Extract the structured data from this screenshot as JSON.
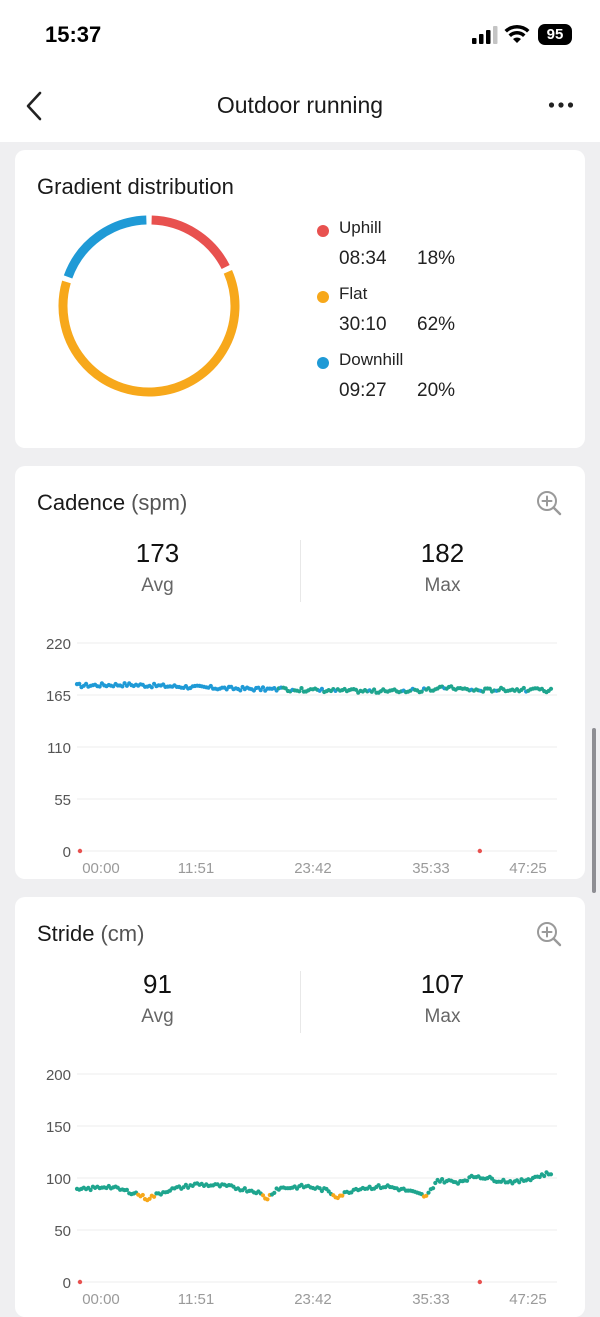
{
  "status": {
    "time": "15:37",
    "battery": "95"
  },
  "nav": {
    "title": "Outdoor running",
    "back_icon": "chevron-left-icon",
    "more_icon": "more-horizontal-icon"
  },
  "gradient": {
    "title": "Gradient distribution",
    "items": [
      {
        "name": "Uphill",
        "time": "08:34",
        "percent": "18%",
        "value": 18,
        "color": "#e8514f"
      },
      {
        "name": "Flat",
        "time": "30:10",
        "percent": "62%",
        "value": 62,
        "color": "#f7a81b"
      },
      {
        "name": "Downhill",
        "time": "09:27",
        "percent": "20%",
        "value": 20,
        "color": "#1f9ad6"
      }
    ]
  },
  "cadence": {
    "title": "Cadence",
    "unit": "(spm)",
    "avg_value": "173",
    "avg_label": "Avg",
    "max_value": "182",
    "max_label": "Max",
    "zoom_icon": "zoom-in-icon"
  },
  "stride": {
    "title": "Stride",
    "unit": "(cm)",
    "avg_value": "91",
    "avg_label": "Avg",
    "max_value": "107",
    "max_label": "Max",
    "zoom_icon": "zoom-in-icon"
  },
  "chart_data": [
    {
      "type": "scatter",
      "name": "cadence",
      "ylim": [
        0,
        220
      ],
      "yticks": [
        "220",
        "165",
        "110",
        "55",
        "0"
      ],
      "ytick_values": [
        220,
        165,
        110,
        55,
        0
      ],
      "xticks": [
        "00:00",
        "11:51",
        "23:42",
        "35:33",
        "47:25"
      ],
      "xlim_minutes": [
        0,
        47.42
      ],
      "colors": {
        "main": "#1ea58e",
        "alt": "#1f9ad6",
        "low": "#e8514f"
      },
      "trend": [
        [
          0,
          175
        ],
        [
          5,
          176
        ],
        [
          10,
          174
        ],
        [
          15,
          172
        ],
        [
          20,
          171
        ],
        [
          25,
          170
        ],
        [
          30,
          169
        ],
        [
          35,
          170
        ],
        [
          37,
          173
        ],
        [
          40,
          170
        ],
        [
          43,
          171
        ],
        [
          47,
          170
        ]
      ],
      "outliers": [
        [
          0,
          0
        ],
        [
          40,
          0
        ]
      ]
    },
    {
      "type": "scatter",
      "name": "stride",
      "ylim": [
        0,
        200
      ],
      "yticks": [
        "200",
        "150",
        "100",
        "50",
        "0"
      ],
      "ytick_values": [
        200,
        150,
        100,
        50,
        0
      ],
      "xticks": [
        "00:00",
        "11:51",
        "23:42",
        "35:33",
        "47:25"
      ],
      "xlim_minutes": [
        0,
        47.42
      ],
      "colors": {
        "main": "#1ea58e",
        "alt": "#f7a81b",
        "low": "#e8514f"
      },
      "trend": [
        [
          0,
          88
        ],
        [
          3,
          92
        ],
        [
          6,
          85
        ],
        [
          7,
          80
        ],
        [
          9,
          88
        ],
        [
          12,
          94
        ],
        [
          15,
          92
        ],
        [
          18,
          87
        ],
        [
          19,
          80
        ],
        [
          20,
          90
        ],
        [
          23,
          92
        ],
        [
          25,
          88
        ],
        [
          26,
          82
        ],
        [
          28,
          90
        ],
        [
          31,
          92
        ],
        [
          33,
          88
        ],
        [
          35,
          82
        ],
        [
          36,
          98
        ],
        [
          38,
          96
        ],
        [
          40,
          102
        ],
        [
          42,
          98
        ],
        [
          44,
          96
        ],
        [
          47,
          104
        ]
      ],
      "outliers": [
        [
          0,
          0
        ],
        [
          40,
          0
        ]
      ]
    }
  ]
}
